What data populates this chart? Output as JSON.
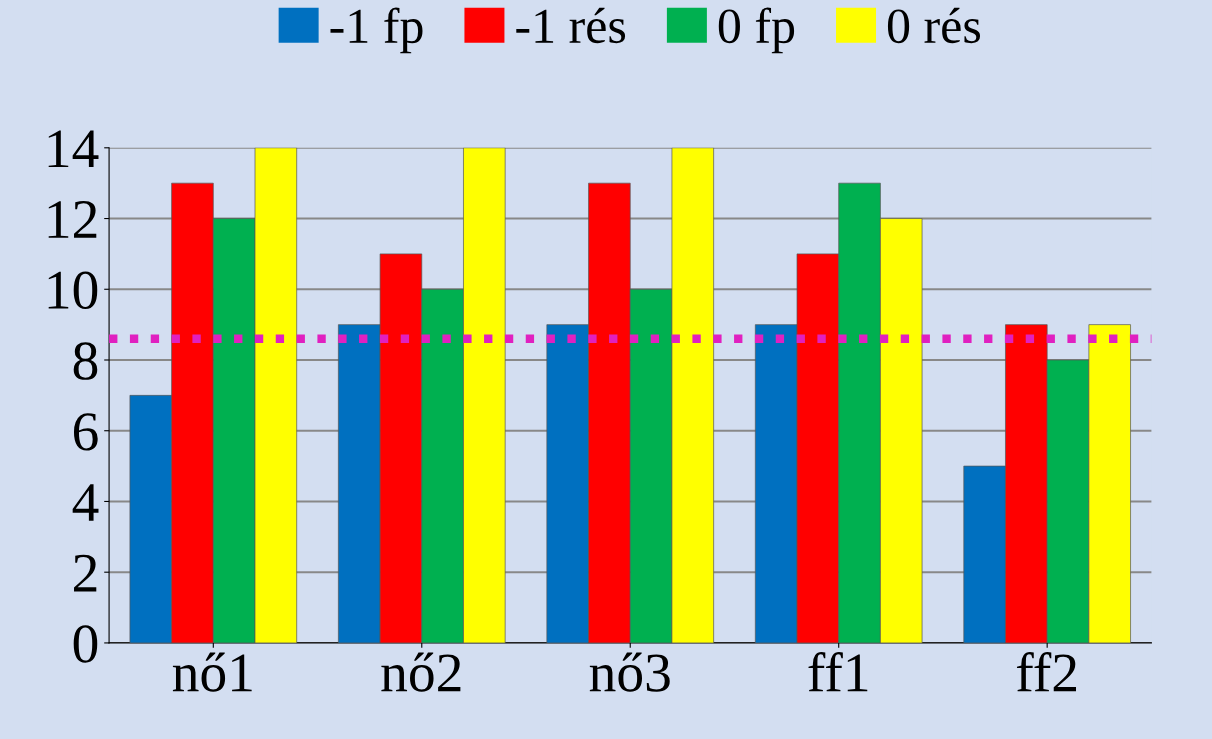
{
  "chart_data": {
    "type": "bar",
    "categories": [
      "nő1",
      "nő2",
      "nő3",
      "ff1",
      "ff2"
    ],
    "series": [
      {
        "name": "-1 fp",
        "color": "#0070c0",
        "values": [
          7,
          9,
          9,
          9,
          5
        ]
      },
      {
        "name": "-1 rés",
        "color": "#ff0000",
        "values": [
          13,
          11,
          13,
          11,
          9
        ]
      },
      {
        "name": "0 fp",
        "color": "#00b050",
        "values": [
          12,
          10,
          10,
          13,
          8
        ]
      },
      {
        "name": "0 rés",
        "color": "#ffff00",
        "values": [
          14,
          14,
          14,
          12,
          9
        ]
      }
    ],
    "ylim": [
      0,
      14
    ],
    "yticks": [
      0,
      2,
      4,
      6,
      8,
      10,
      12,
      14
    ],
    "grid": "y",
    "legend": "top",
    "ref_lines": [
      {
        "axis": "y",
        "value": 8.6,
        "color": "#e020c0",
        "line_style": "dotted"
      }
    ]
  }
}
